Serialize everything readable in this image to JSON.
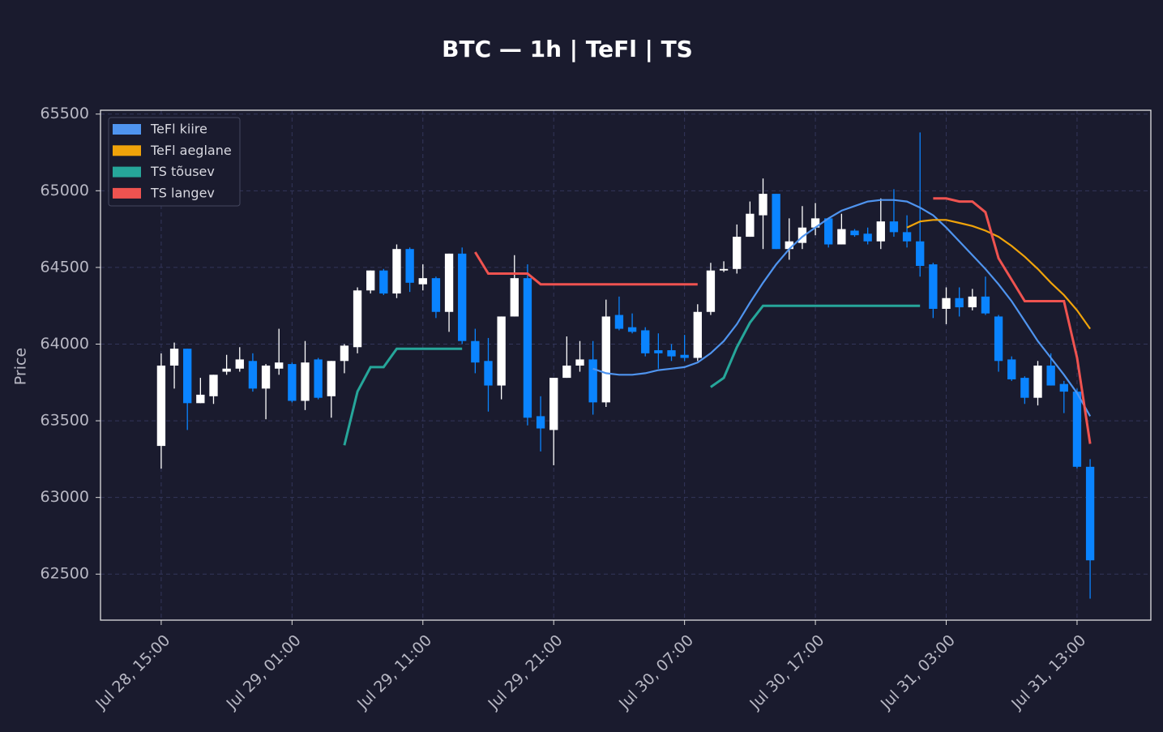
{
  "chart_data": {
    "type": "candlestick",
    "title": "BTC — 1h  |  TeFl  |  TS",
    "y_label": "Price",
    "x": [
      "Jul 28, 15:00",
      null,
      null,
      null,
      null,
      null,
      null,
      null,
      null,
      null,
      "Jul 29, 01:00",
      null,
      null,
      null,
      null,
      null,
      null,
      null,
      null,
      null,
      "Jul 29, 11:00",
      null,
      null,
      null,
      null,
      null,
      null,
      null,
      null,
      null,
      "Jul 29, 21:00",
      null,
      null,
      null,
      null,
      null,
      null,
      null,
      null,
      null,
      "Jul 30, 07:00",
      null,
      null,
      null,
      null,
      null,
      null,
      null,
      null,
      null,
      "Jul 30, 17:00",
      null,
      null,
      null,
      null,
      null,
      null,
      null,
      null,
      null,
      "Jul 31, 03:00",
      null,
      null,
      null,
      null,
      null,
      null,
      null,
      null,
      null,
      "Jul 31, 13:00",
      null
    ],
    "open": [
      63336,
      63860,
      63970,
      63615,
      63660,
      63820,
      63840,
      63890,
      63710,
      63840,
      63870,
      63630,
      63900,
      63660,
      63890,
      63980,
      64350,
      64480,
      64330,
      64620,
      64390,
      64430,
      64210,
      64590,
      64020,
      63890,
      63730,
      64180,
      64430,
      63530,
      63440,
      63780,
      63860,
      63900,
      63620,
      64190,
      64110,
      64090,
      63960,
      63960,
      63930,
      63910,
      64210,
      64480,
      64490,
      64700,
      64840,
      64980,
      64620,
      64660,
      64760,
      64820,
      64650,
      64740,
      64720,
      64670,
      64800,
      64730,
      64670,
      64520,
      64230,
      64300,
      64240,
      64310,
      64180,
      63900,
      63780,
      63650,
      63860,
      63740,
      63690,
      63200
    ],
    "high": [
      63939,
      64010,
      63970,
      63780,
      63800,
      63930,
      63980,
      63940,
      63870,
      64100,
      63880,
      64020,
      63910,
      63890,
      64000,
      64370,
      64480,
      64490,
      64650,
      64630,
      64520,
      64440,
      64590,
      64630,
      64100,
      64040,
      64180,
      64580,
      64520,
      63660,
      63780,
      64050,
      64020,
      64020,
      64290,
      64310,
      64200,
      64110,
      64070,
      64000,
      64060,
      64260,
      64530,
      64540,
      64780,
      64930,
      65080,
      64980,
      64820,
      64900,
      64920,
      64820,
      64850,
      64750,
      64760,
      64950,
      65010,
      64840,
      65380,
      64530,
      64370,
      64370,
      64360,
      64440,
      64190,
      63920,
      63790,
      63890,
      63940,
      63760,
      63710,
      63250
    ],
    "low": [
      63188,
      63710,
      63440,
      63615,
      63610,
      63800,
      63820,
      63690,
      63510,
      63800,
      63620,
      63570,
      63640,
      63520,
      63810,
      63940,
      64330,
      64320,
      64300,
      64340,
      64350,
      64170,
      64080,
      64000,
      63810,
      63560,
      63640,
      64180,
      63470,
      63300,
      63210,
      63780,
      63820,
      63540,
      63590,
      64090,
      64070,
      63920,
      63840,
      63890,
      63890,
      63890,
      64190,
      64470,
      64460,
      64700,
      64620,
      64620,
      64550,
      64620,
      64710,
      64630,
      64650,
      64700,
      64650,
      64620,
      64700,
      64630,
      64440,
      64170,
      64130,
      64180,
      64220,
      64190,
      63820,
      63760,
      63610,
      63600,
      63730,
      63550,
      63190,
      62340
    ],
    "close": [
      63860,
      63970,
      63615,
      63670,
      63800,
      63840,
      63900,
      63710,
      63860,
      63880,
      63630,
      63880,
      63650,
      63890,
      63990,
      64350,
      64480,
      64330,
      64620,
      64400,
      64430,
      64210,
      64590,
      64020,
      63880,
      63730,
      64180,
      64430,
      63520,
      63450,
      63780,
      63860,
      63900,
      63620,
      64180,
      64100,
      64080,
      63940,
      63940,
      63920,
      63910,
      64210,
      64480,
      64490,
      64700,
      64850,
      64980,
      64620,
      64670,
      64760,
      64820,
      64650,
      64750,
      64710,
      64670,
      64800,
      64730,
      64670,
      64510,
      64230,
      64300,
      64240,
      64310,
      64200,
      63890,
      63770,
      63650,
      63860,
      63730,
      63690,
      63200,
      62590
    ],
    "up_color": "#ffffff",
    "down_color": "#0a84ff",
    "series": [
      {
        "name": "TeFl kiire",
        "color": "#4f94ef",
        "values": [
          null,
          null,
          null,
          null,
          null,
          null,
          null,
          null,
          null,
          null,
          null,
          null,
          null,
          null,
          null,
          null,
          null,
          null,
          null,
          null,
          null,
          null,
          null,
          null,
          null,
          null,
          null,
          null,
          null,
          null,
          null,
          null,
          null,
          63840,
          63810,
          63800,
          63800,
          63810,
          63830,
          63840,
          63850,
          63880,
          63940,
          64020,
          64130,
          64270,
          64400,
          64520,
          64620,
          64700,
          64760,
          64820,
          64870,
          64900,
          64930,
          64940,
          64940,
          64930,
          64890,
          64840,
          64760,
          64670,
          64580,
          64490,
          64390,
          64280,
          64150,
          64020,
          63910,
          63800,
          63680,
          63530
        ]
      },
      {
        "name": "TeFl aeglane",
        "color": "#f0a30a",
        "values": [
          null,
          null,
          null,
          null,
          null,
          null,
          null,
          null,
          null,
          null,
          null,
          null,
          null,
          null,
          null,
          null,
          null,
          null,
          null,
          null,
          null,
          null,
          null,
          null,
          null,
          null,
          null,
          null,
          null,
          null,
          null,
          null,
          null,
          null,
          null,
          null,
          null,
          null,
          null,
          null,
          null,
          null,
          null,
          null,
          null,
          null,
          null,
          null,
          null,
          null,
          null,
          null,
          null,
          null,
          null,
          null,
          null,
          64760,
          64800,
          64810,
          64810,
          64790,
          64770,
          64740,
          64700,
          64640,
          64570,
          64490,
          64400,
          64320,
          64220,
          64100
        ]
      },
      {
        "name": "TS tõusev",
        "color": "#26a69a",
        "values": [
          null,
          null,
          null,
          null,
          null,
          null,
          null,
          null,
          null,
          null,
          null,
          null,
          null,
          null,
          63340,
          63690,
          63850,
          63850,
          63970,
          63970,
          63970,
          63970,
          63970,
          63970,
          null,
          null,
          null,
          null,
          null,
          null,
          null,
          null,
          null,
          null,
          null,
          null,
          null,
          null,
          null,
          null,
          null,
          null,
          63720,
          63780,
          63980,
          64140,
          64250,
          64250,
          64250,
          64250,
          64250,
          64250,
          64250,
          64250,
          64250,
          64250,
          64250,
          64250,
          64250,
          null,
          null,
          null,
          null,
          null,
          null,
          null,
          null,
          null,
          null,
          null,
          null,
          null
        ]
      },
      {
        "name": "TS langev",
        "color": "#ef5350",
        "values": [
          null,
          null,
          null,
          null,
          null,
          null,
          null,
          null,
          null,
          null,
          null,
          null,
          null,
          null,
          null,
          null,
          null,
          null,
          null,
          null,
          null,
          null,
          null,
          null,
          64600,
          64460,
          64460,
          64460,
          64460,
          64390,
          64390,
          64390,
          64390,
          64390,
          64390,
          64390,
          64390,
          64390,
          64390,
          64390,
          64390,
          64390,
          null,
          null,
          null,
          null,
          null,
          null,
          null,
          null,
          null,
          null,
          null,
          null,
          null,
          null,
          null,
          null,
          null,
          64950,
          64950,
          64930,
          64930,
          64860,
          64560,
          64420,
          64280,
          64280,
          64280,
          64280,
          63910,
          63350
        ]
      }
    ],
    "ylim": [
      62200,
      65525
    ],
    "yticks": [
      62500,
      63000,
      63500,
      64000,
      64500,
      65000,
      65500
    ],
    "grid": true,
    "legend": "upper left"
  }
}
